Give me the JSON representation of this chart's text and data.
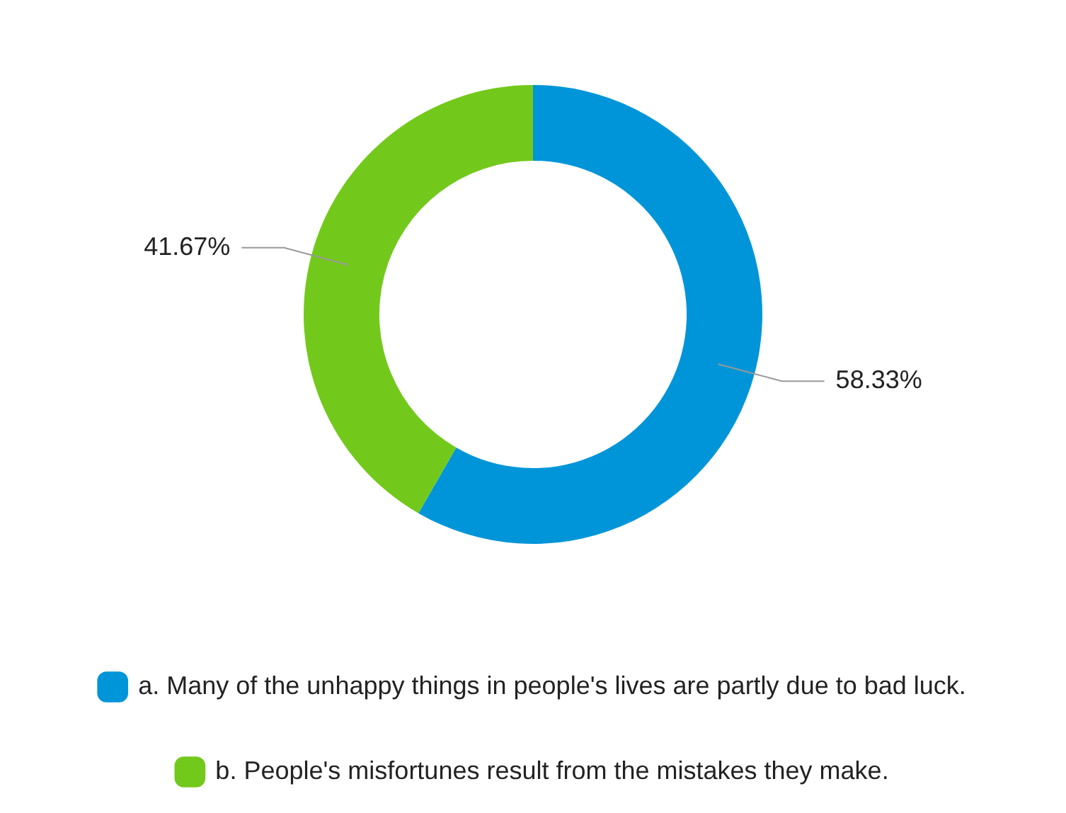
{
  "chart_data": {
    "type": "donut",
    "categories": [
      "a. Many of the unhappy things in people's lives are partly due to bad luck.",
      "b. People's misfortunes result from the mistakes they make."
    ],
    "values": [
      58.33,
      41.67
    ],
    "colors": [
      "#0095d8",
      "#73c91b"
    ],
    "value_labels": [
      "58.33%",
      "41.67%"
    ],
    "legend": "bottom"
  }
}
